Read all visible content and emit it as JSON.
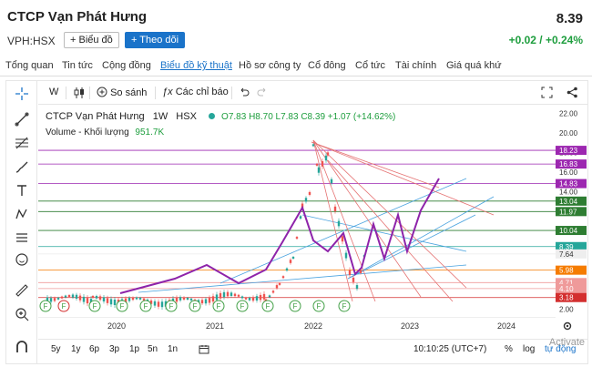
{
  "header": {
    "company": "CTCP Vạn Phát Hưng",
    "price": "8.39",
    "ticker": "VPH:HSX",
    "chart_button": "+ Biểu đồ",
    "follow_button": "+ Theo dõi",
    "change": "+0.02 / +0.24%"
  },
  "tabs": [
    "Tổng quan",
    "Tin tức",
    "Cộng đồng",
    "Biểu đồ kỹ thuật",
    "Hồ sơ công ty",
    "Cổ đông",
    "Cổ tức",
    "Tài chính",
    "Giá quá khứ"
  ],
  "toolbar": {
    "interval": "W",
    "compare": "So sánh",
    "indicators": "Các chỉ báo"
  },
  "legend": {
    "symbol": "CTCP Vạn Phát Hưng",
    "interval": "1W",
    "exchange": "HSX",
    "ohlc": "O7.83 H8.70 L7.83 C8.39 +1.07 (+14.62%)",
    "volume_label": "Volume - Khối lượng",
    "volume_value": "951.7K"
  },
  "axis": {
    "ticks": [
      "22.00",
      "20.00",
      "18.00",
      "16.00",
      "14.00",
      "12.00",
      "10.00",
      "8.00",
      "6.00",
      "4.00",
      "2.00"
    ],
    "badges": [
      {
        "label": "18.23",
        "value": 18.23,
        "color": "#9c27b0"
      },
      {
        "label": "16.83",
        "value": 16.83,
        "color": "#9c27b0"
      },
      {
        "label": "14.83",
        "value": 14.83,
        "color": "#9c27b0"
      },
      {
        "label": "13.04",
        "value": 13.04,
        "color": "#2e7d32"
      },
      {
        "label": "11.97",
        "value": 11.97,
        "color": "#2e7d32"
      },
      {
        "label": "10.04",
        "value": 10.04,
        "color": "#2e7d32"
      },
      {
        "label": "8.39",
        "value": 8.39,
        "color": "#26a69a"
      },
      {
        "label": "7.64",
        "value": 7.64,
        "color": "#eeeeee"
      },
      {
        "label": "5.98",
        "value": 5.98,
        "color": "#f57c00"
      },
      {
        "label": "4.71",
        "value": 4.71,
        "color": "#ef9a9a"
      },
      {
        "label": "4.10",
        "value": 4.1,
        "color": "#ef9a9a"
      },
      {
        "label": "3.18",
        "value": 3.18,
        "color": "#d32f2f"
      }
    ]
  },
  "xaxis": [
    "2020",
    "2021",
    "2022",
    "2023",
    "2024"
  ],
  "ranges": [
    "5y",
    "1y",
    "6p",
    "3p",
    "1p",
    "5n",
    "1n"
  ],
  "bottom": {
    "time": "10:10:25 (UTC+7)",
    "percent": "%",
    "log": "log",
    "auto": "tự động"
  },
  "watermark": "Activate"
}
